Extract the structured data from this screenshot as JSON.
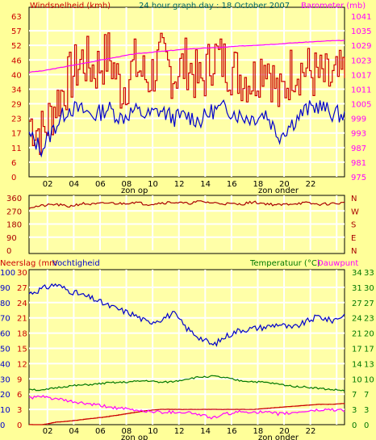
{
  "title": "24 hour graph day : 18 October 2007",
  "colors": {
    "bg": "#ffff99",
    "panel": "#ffffa8",
    "grid": "#ffffff",
    "red": "#cc0000",
    "blue": "#0000cc",
    "magenta": "#ff00ff",
    "green": "#007700",
    "darkred": "#aa0000",
    "teal": "#006666",
    "black": "#000000"
  },
  "x_ticks": [
    "02",
    "04",
    "06",
    "08",
    "10",
    "12",
    "14",
    "16",
    "18",
    "20",
    "22",
    ""
  ],
  "sun_labels": [
    "zon op",
    "zon onder"
  ],
  "chart_data": [
    {
      "type": "line",
      "title": "24 hour graph day : 18 October 2007",
      "ylabel": "Windsnelheid (kmh)",
      "y2label": "Barometer (mb)",
      "ylim": [
        0,
        63
      ],
      "y2lim": [
        975,
        1041
      ],
      "yticks": [
        "63",
        "57",
        "52",
        "46",
        "40",
        "34",
        "29",
        "23",
        "17",
        "11",
        "6",
        "0"
      ],
      "y2ticks": [
        "1041",
        "1035",
        "1029",
        "1023",
        "1017",
        "1011",
        "1005",
        "999",
        "993",
        "987",
        "981",
        "975"
      ],
      "x": [
        0,
        1,
        2,
        3,
        4,
        5,
        6,
        7,
        8,
        9,
        10,
        11,
        12,
        13,
        14,
        15,
        16,
        17,
        18,
        19,
        20,
        21,
        22,
        23,
        24
      ],
      "series": [
        {
          "name": "Windsnelheid (kmh)",
          "color": "#cc0000",
          "axis": "left",
          "values": [
            22,
            17,
            29,
            38,
            46,
            42,
            48,
            34,
            44,
            38,
            46,
            40,
            45,
            36,
            48,
            44,
            40,
            38,
            47,
            30,
            43,
            42,
            39,
            37,
            40
          ]
        },
        {
          "name": "",
          "color": "#0000cc",
          "axis": "left",
          "values": [
            16,
            11,
            20,
            27,
            26,
            24,
            27,
            23,
            26,
            24,
            26,
            23,
            24,
            22,
            26,
            27,
            24,
            23,
            25,
            16,
            21,
            26,
            28,
            25,
            24
          ]
        },
        {
          "name": "Barometer (mb)",
          "color": "#ff00ff",
          "axis": "right",
          "values": [
            1018,
            1018.5,
            1019.5,
            1020.5,
            1021.5,
            1022.5,
            1023.5,
            1024.5,
            1025.5,
            1026,
            1026.5,
            1027,
            1027.5,
            1027.8,
            1028,
            1028.3,
            1028.7,
            1029,
            1029.3,
            1029.6,
            1030,
            1030.3,
            1030.6,
            1030.9,
            1031
          ]
        }
      ]
    },
    {
      "type": "line",
      "ylabel": "",
      "ylim": [
        0,
        360
      ],
      "yticks": [
        "360",
        "270",
        "180",
        "90",
        "0"
      ],
      "y2ticks": [
        "N",
        "W",
        "S",
        "E",
        "N"
      ],
      "x": [
        0,
        1,
        2,
        3,
        4,
        5,
        6,
        7,
        8,
        9,
        10,
        11,
        12,
        13,
        14,
        15,
        16,
        17,
        18,
        19,
        20,
        21,
        22,
        23,
        24
      ],
      "series": [
        {
          "name": "",
          "color": "#aa0000",
          "values": [
            295,
            305,
            315,
            300,
            320,
            315,
            325,
            320,
            330,
            315,
            325,
            330,
            320,
            335,
            325,
            320,
            315,
            330,
            320,
            310,
            320,
            325,
            315,
            320,
            325
          ]
        }
      ]
    },
    {
      "type": "line",
      "ylabel": "Neerslag (mm",
      "ylabel2": "Vochtigheid",
      "y2label": "Temperatuur (°C)",
      "y2label2": "Dauwpunt",
      "ylim_left_outer": [
        0,
        100
      ],
      "ylim_left_inner": [
        0,
        30
      ],
      "ylim_right_outer": [
        0,
        34
      ],
      "ylim_right_inner": [
        0,
        33
      ],
      "yticks_outer": [
        "100",
        "90",
        "80",
        "70",
        "60",
        "50",
        "40",
        "30",
        "20",
        "10",
        "0"
      ],
      "yticks_inner": [
        "30",
        "27",
        "24",
        "21",
        "18",
        "15",
        "12",
        "9",
        "6",
        "3",
        "0"
      ],
      "y2ticks_outer": [
        "34",
        "31",
        "27",
        "24",
        "21",
        "17",
        "14",
        "10",
        "7",
        "3",
        "0"
      ],
      "y2ticks_inner": [
        "33",
        "30",
        "27",
        "23",
        "20",
        "17",
        "13",
        "10",
        "7",
        "3",
        "0"
      ],
      "x": [
        0,
        1,
        2,
        3,
        4,
        5,
        6,
        7,
        8,
        9,
        10,
        11,
        12,
        13,
        14,
        15,
        16,
        17,
        18,
        19,
        20,
        21,
        22,
        23,
        24
      ],
      "series": [
        {
          "name": "Vochtigheid",
          "color": "#0000cc",
          "axis": "left_outer",
          "values": [
            86,
            89,
            92,
            88,
            85,
            82,
            78,
            75,
            72,
            67,
            69,
            73,
            63,
            57,
            52,
            58,
            62,
            63,
            64,
            66,
            63,
            67,
            71,
            68,
            72
          ]
        },
        {
          "name": "Neerslag (mm",
          "color": "#cc0000",
          "axis": "left_inner",
          "values": [
            0,
            0,
            0.5,
            0.7,
            1,
            1.3,
            1.6,
            2,
            2.4,
            2.8,
            3,
            3,
            3,
            3,
            3,
            3,
            3,
            3,
            3.2,
            3.4,
            3.6,
            3.8,
            4,
            4,
            4.2
          ]
        },
        {
          "name": "Temperatuur (°C)",
          "color": "#007700",
          "axis": "right_outer",
          "values": [
            8,
            7.6,
            8.2,
            8.6,
            8.8,
            9,
            9.3,
            9.4,
            9.6,
            9.8,
            9.4,
            9.6,
            10.2,
            10.6,
            10.8,
            10.4,
            9.8,
            9.6,
            9.4,
            9,
            8.6,
            8.4,
            8.1,
            7.8,
            7.6
          ]
        },
        {
          "name": "Dauwpunt",
          "color": "#ff00ff",
          "axis": "right_outer",
          "values": [
            6,
            6.2,
            5.8,
            5.2,
            4.8,
            4.4,
            4,
            3.6,
            3.2,
            3,
            2.8,
            2.8,
            2.8,
            2.2,
            1.5,
            2.4,
            2.8,
            2.9,
            2.7,
            2.4,
            2.6,
            3,
            3.2,
            3.4,
            3.2
          ]
        }
      ]
    }
  ]
}
